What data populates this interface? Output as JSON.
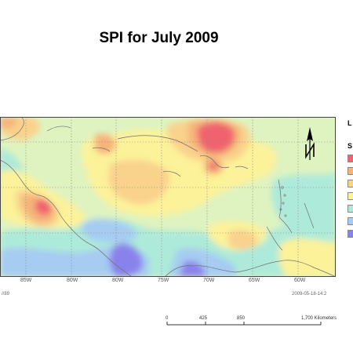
{
  "title": "SPI for July 2009",
  "map": {
    "longitude_labels": [
      "85W",
      "80W",
      "80W",
      "75W",
      "70W",
      "65W",
      "60W"
    ],
    "palette": {
      "strong_red": "#f0646e",
      "orange": "#f5b47a",
      "light_orange": "#f9d28c",
      "yellow": "#fcf29a",
      "light_green": "#dff3c0",
      "cyan": "#aeead9",
      "light_blue": "#a6ccf2",
      "purple": "#8a82ec"
    }
  },
  "legend": {
    "header_l": "L",
    "header_s": "S",
    "swatch_colors": [
      "#f0646e",
      "#f5b47a",
      "#f9d28c",
      "#fcf29a",
      "#aeead9",
      "#a6ccf2",
      "#8a82ec"
    ]
  },
  "footer": {
    "left_text": "//89",
    "right_text": "2009-05-18-14:2",
    "scale_labels": [
      "0",
      "425",
      "850",
      "1,700 Kilometers"
    ]
  }
}
